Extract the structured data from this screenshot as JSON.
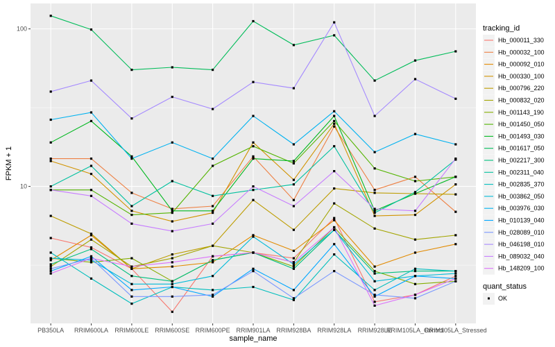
{
  "chart_data": {
    "type": "line",
    "xlabel": "sample_name",
    "ylabel": "FPKM + 1",
    "y_scale": "log10",
    "ylim": [
      1.35,
      145
    ],
    "y_ticks": [
      10,
      100
    ],
    "grid": true,
    "legend_placement": "right",
    "categories": [
      "PB350LA",
      "RRIM600LA",
      "RRIM600LE",
      "RRIM600SE",
      "RRIM600PE",
      "RRIM901LA",
      "RRIM928BA",
      "RRIM928LA",
      "RRIM928LE",
      "RRIM105LA_Control",
      "RRIM105LA_Stressed"
    ],
    "color_legend": {
      "title": "tracking_id",
      "entries": [
        "Hb_000011_330",
        "Hb_000032_100",
        "Hb_000092_010",
        "Hb_000330_100",
        "Hb_000796_220",
        "Hb_000832_020",
        "Hb_001143_190",
        "Hb_001450_050",
        "Hb_001493_030",
        "Hb_001617_050",
        "Hb_002217_300",
        "Hb_002311_040",
        "Hb_002835_370",
        "Hb_003862_050",
        "Hb_003976_030",
        "Hb_010139_040",
        "Hb_028089_010",
        "Hb_046198_010",
        "Hb_089032_040",
        "Hb_148209_100"
      ]
    },
    "point_legend": {
      "title": "quant_status",
      "entries": [
        "OK"
      ]
    },
    "series": [
      {
        "name": "Hb_000011_330",
        "color": "#F8766D",
        "values": [
          4.7,
          4.1,
          3.0,
          1.6,
          3.6,
          3.8,
          3.5,
          6.3,
          1.85,
          2.05,
          2.7
        ]
      },
      {
        "name": "Hb_000032_100",
        "color": "#EE8043",
        "values": [
          15.0,
          15.0,
          9.1,
          7.2,
          7.5,
          15.5,
          8.2,
          24.0,
          9.5,
          11.5,
          6.9
        ]
      },
      {
        "name": "Hb_000092_010",
        "color": "#E28A00",
        "values": [
          3.4,
          4.9,
          3.0,
          3.1,
          3.3,
          4.9,
          3.9,
          6.1,
          3.1,
          3.8,
          4.3
        ]
      },
      {
        "name": "Hb_000330_100",
        "color": "#D19300",
        "values": [
          14.5,
          12.0,
          7.0,
          6.0,
          6.8,
          19.0,
          11.0,
          25.0,
          6.5,
          6.6,
          10.3
        ]
      },
      {
        "name": "Hb_000796_220",
        "color": "#BD9D00",
        "values": [
          6.5,
          5.0,
          3.0,
          3.7,
          4.2,
          8.2,
          5.3,
          9.7,
          9.1,
          9.0,
          8.9
        ]
      },
      {
        "name": "Hb_000832_020",
        "color": "#A3A500",
        "values": [
          3.1,
          4.6,
          3.1,
          3.5,
          4.2,
          3.8,
          3.3,
          7.8,
          5.4,
          4.6,
          4.9
        ]
      },
      {
        "name": "Hb_001143_190",
        "color": "#84AD00",
        "values": [
          3.5,
          3.3,
          3.5,
          2.5,
          3.4,
          3.8,
          3.1,
          5.5,
          2.9,
          2.4,
          2.5
        ]
      },
      {
        "name": "Hb_001450_050",
        "color": "#53B400",
        "values": [
          9.5,
          9.5,
          6.6,
          6.8,
          13.5,
          18.0,
          14.0,
          26.0,
          13.0,
          10.8,
          11.5
        ]
      },
      {
        "name": "Hb_001493_030",
        "color": "#00B81F",
        "values": [
          19.0,
          26.0,
          15.5,
          7.0,
          7.0,
          15.0,
          14.5,
          28.0,
          7.0,
          9.0,
          11.5
        ]
      },
      {
        "name": "Hb_001617_050",
        "color": "#00BC59",
        "values": [
          121,
          99,
          55,
          57,
          55,
          112,
          79,
          91,
          47,
          63,
          72
        ]
      },
      {
        "name": "Hb_002217_300",
        "color": "#00BF7D",
        "values": [
          3.2,
          4.0,
          2.7,
          2.5,
          3.4,
          3.8,
          3.0,
          5.3,
          2.8,
          2.9,
          2.9
        ]
      },
      {
        "name": "Hb_002311_040",
        "color": "#00C09F",
        "values": [
          10.0,
          13.5,
          7.5,
          10.8,
          8.7,
          9.5,
          10.3,
          18.0,
          6.8,
          9.2,
          14.8
        ]
      },
      {
        "name": "Hb_002835_370",
        "color": "#00BEBD",
        "values": [
          3.8,
          2.6,
          1.8,
          2.3,
          2.2,
          2.3,
          1.9,
          3.7,
          2.2,
          3.0,
          2.9
        ]
      },
      {
        "name": "Hb_003862_050",
        "color": "#00BAD8",
        "values": [
          3.5,
          3.4,
          2.4,
          2.4,
          2.7,
          4.8,
          3.2,
          5.3,
          2.5,
          2.7,
          2.8
        ]
      },
      {
        "name": "Hb_003976_030",
        "color": "#00B2F0",
        "values": [
          26.5,
          29.5,
          15.0,
          19.0,
          15.0,
          28.0,
          18.5,
          30.0,
          16.5,
          21.5,
          18.5
        ]
      },
      {
        "name": "Hb_010139_040",
        "color": "#00A7FF",
        "values": [
          2.9,
          3.6,
          2.2,
          2.3,
          2.0,
          3.0,
          2.2,
          4.3,
          2.0,
          2.7,
          2.6
        ]
      },
      {
        "name": "Hb_028089_010",
        "color": "#7997FF",
        "values": [
          3.0,
          3.5,
          2.0,
          2.0,
          2.05,
          2.9,
          1.95,
          2.9,
          2.05,
          1.95,
          2.5
        ]
      },
      {
        "name": "Hb_046198_010",
        "color": "#A58AFF",
        "values": [
          40,
          47,
          27,
          37,
          31,
          46,
          42,
          110,
          28,
          48,
          36
        ]
      },
      {
        "name": "Hb_089032_040",
        "color": "#C77CFF",
        "values": [
          9.5,
          8.7,
          5.8,
          5.2,
          5.8,
          10.0,
          7.5,
          12.5,
          7.2,
          7.0,
          15.0
        ]
      },
      {
        "name": "Hb_148209_100",
        "color": "#DC71FA",
        "values": [
          2.8,
          3.5,
          3.1,
          3.3,
          3.6,
          3.8,
          3.3,
          5.5,
          1.75,
          2.05,
          2.6
        ]
      }
    ]
  }
}
